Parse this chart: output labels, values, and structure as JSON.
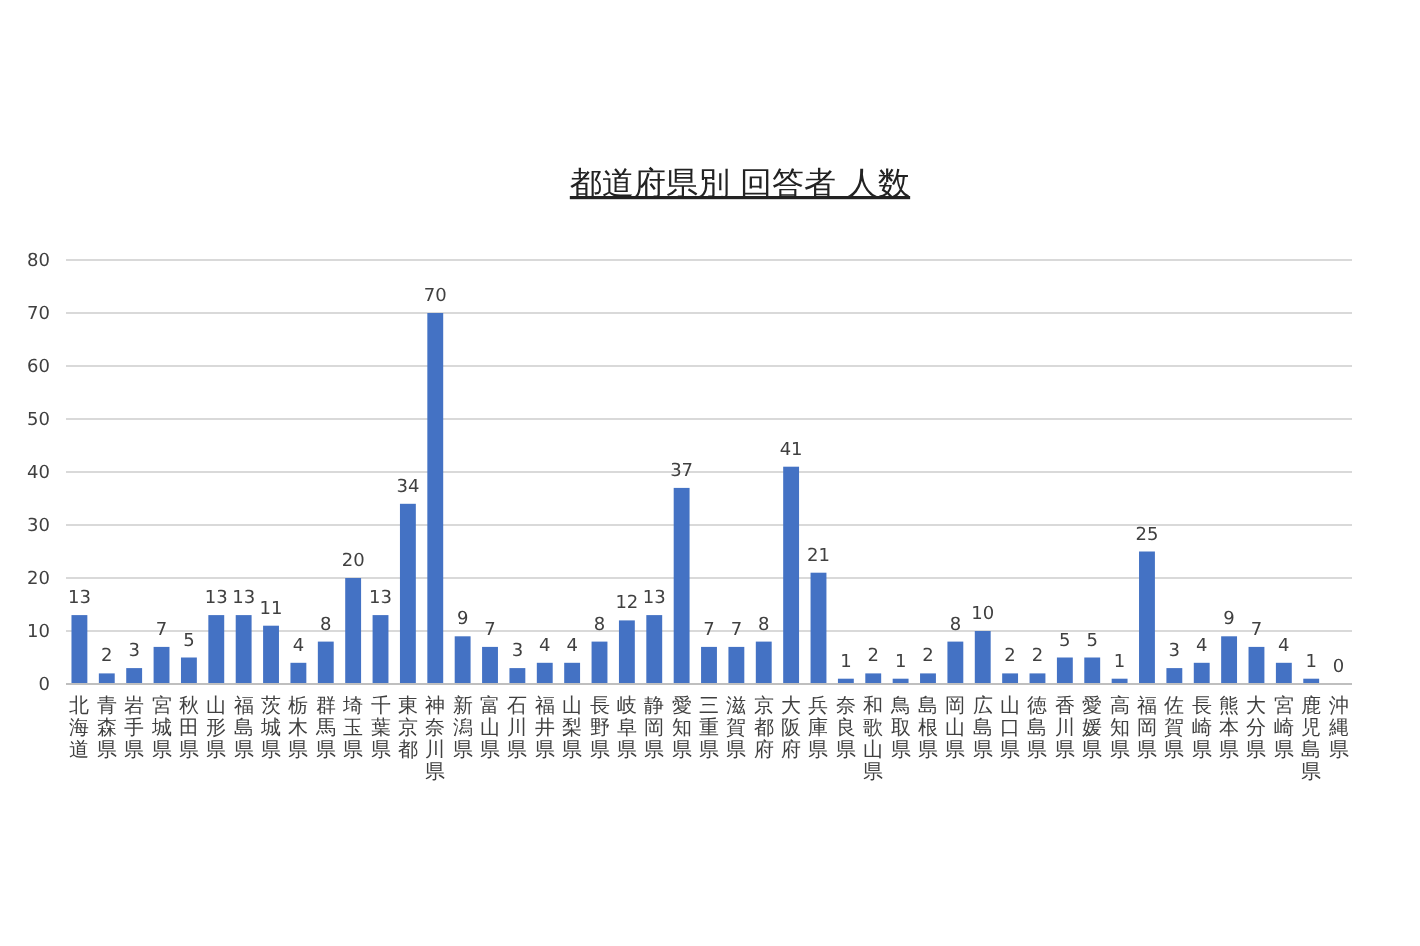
{
  "chart_data": {
    "type": "bar",
    "title": "都道府県別 回答者 人数",
    "categories": [
      "北海道",
      "青森県",
      "岩手県",
      "宮城県",
      "秋田県",
      "山形県",
      "福島県",
      "茨城県",
      "栃木県",
      "群馬県",
      "埼玉県",
      "千葉県",
      "東京都",
      "神奈川県",
      "新潟県",
      "富山県",
      "石川県",
      "福井県",
      "山梨県",
      "長野県",
      "岐阜県",
      "静岡県",
      "愛知県",
      "三重県",
      "滋賀県",
      "京都府",
      "大阪府",
      "兵庫県",
      "奈良県",
      "和歌山県",
      "鳥取県",
      "島根県",
      "岡山県",
      "広島県",
      "山口県",
      "徳島県",
      "香川県",
      "愛媛県",
      "高知県",
      "福岡県",
      "佐賀県",
      "長崎県",
      "熊本県",
      "大分県",
      "宮崎県",
      "鹿児島県",
      "沖縄県"
    ],
    "values": [
      13,
      2,
      3,
      7,
      5,
      13,
      13,
      11,
      4,
      8,
      20,
      13,
      34,
      70,
      9,
      7,
      3,
      4,
      4,
      8,
      12,
      13,
      37,
      7,
      7,
      8,
      41,
      21,
      1,
      2,
      1,
      2,
      8,
      10,
      2,
      2,
      5,
      5,
      1,
      25,
      3,
      4,
      9,
      7,
      4,
      1,
      0
    ],
    "color": "#4472c4",
    "ylim": [
      0,
      80
    ],
    "yticks": [
      0,
      10,
      20,
      30,
      40,
      50,
      60,
      70,
      80
    ],
    "grid": "y",
    "data_labels": true
  }
}
